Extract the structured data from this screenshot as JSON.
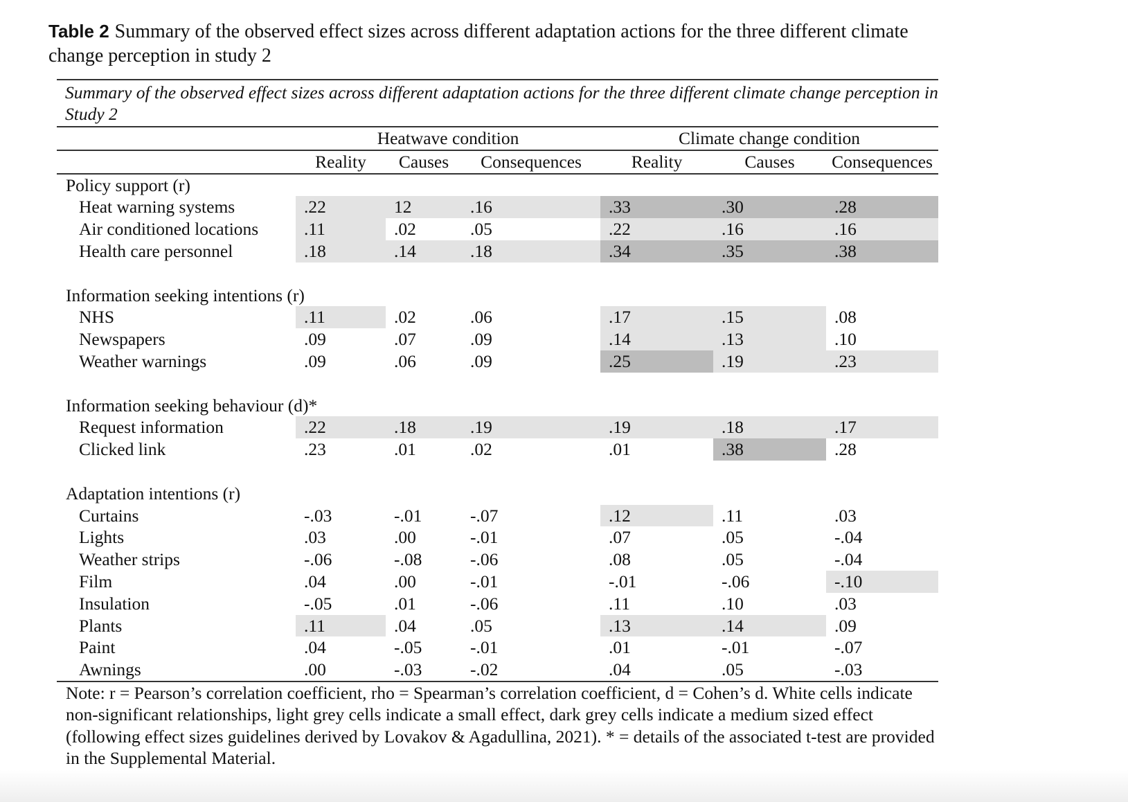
{
  "title": {
    "label": "Table 2",
    "text": "Summary of the observed effect sizes across different adaptation actions for the three different climate change perception in study 2"
  },
  "caption": "Summary of the observed effect sizes across different adaptation actions for the three different climate change perception in Study 2",
  "groups": [
    "Heatwave condition",
    "Climate change condition"
  ],
  "columns": [
    "Reality",
    "Causes",
    "Consequences",
    "Reality",
    "Causes",
    "Consequences"
  ],
  "sections": [
    {
      "label": "Policy support (r)",
      "rows": [
        {
          "label": "Heat warning systems",
          "values": [
            ".22",
            "12",
            ".16",
            ".33",
            ".30",
            ".28"
          ],
          "shade": [
            "light",
            "light",
            "light",
            "dark",
            "dark",
            "dark"
          ]
        },
        {
          "label": "Air conditioned locations",
          "values": [
            ".11",
            ".02",
            ".05",
            ".22",
            ".16",
            ".16"
          ],
          "shade": [
            "light",
            "",
            "",
            "light",
            "light",
            "light"
          ]
        },
        {
          "label": "Health care personnel",
          "values": [
            ".18",
            ".14",
            ".18",
            ".34",
            ".35",
            ".38"
          ],
          "shade": [
            "light",
            "light",
            "light",
            "dark",
            "dark",
            "dark"
          ]
        }
      ]
    },
    {
      "label": "Information seeking intentions (r)",
      "rows": [
        {
          "label": "NHS",
          "values": [
            ".11",
            ".02",
            ".06",
            ".17",
            ".15",
            ".08"
          ],
          "shade": [
            "light",
            "",
            "",
            "light",
            "light",
            ""
          ]
        },
        {
          "label": "Newspapers",
          "values": [
            ".09",
            ".07",
            ".09",
            ".14",
            ".13",
            ".10"
          ],
          "shade": [
            "",
            "",
            "",
            "light",
            "light",
            ""
          ]
        },
        {
          "label": "Weather warnings",
          "values": [
            ".09",
            ".06",
            ".09",
            ".25",
            ".19",
            ".23"
          ],
          "shade": [
            "",
            "",
            "",
            "dark",
            "light",
            "light"
          ]
        }
      ]
    },
    {
      "label": "Information seeking behaviour (d)*",
      "rows": [
        {
          "label": "Request information",
          "values": [
            ".22",
            ".18",
            ".19",
            ".19",
            ".18",
            ".17"
          ],
          "shade": [
            "light",
            "light",
            "light",
            "light",
            "light",
            "light"
          ]
        },
        {
          "label": "Clicked link",
          "values": [
            ".23",
            ".01",
            ".02",
            ".01",
            ".38",
            ".28"
          ],
          "shade": [
            "",
            "",
            "",
            "",
            "dark",
            ""
          ]
        }
      ]
    },
    {
      "label": "Adaptation intentions (r)",
      "rows": [
        {
          "label": "Curtains",
          "values": [
            "-.03",
            "-.01",
            "-.07",
            ".12",
            ".11",
            ".03"
          ],
          "shade": [
            "",
            "",
            "",
            "light",
            "",
            ""
          ]
        },
        {
          "label": "Lights",
          "values": [
            ".03",
            ".00",
            "-.01",
            ".07",
            ".05",
            "-.04"
          ],
          "shade": [
            "",
            "",
            "",
            "",
            "",
            ""
          ]
        },
        {
          "label": "Weather strips",
          "values": [
            "-.06",
            "-.08",
            "-.06",
            ".08",
            ".05",
            "-.04"
          ],
          "shade": [
            "",
            "",
            "",
            "",
            "",
            ""
          ]
        },
        {
          "label": "Film",
          "values": [
            ".04",
            ".00",
            "-.01",
            "-.01",
            "-.06",
            "-.10"
          ],
          "shade": [
            "",
            "",
            "",
            "",
            "",
            "light"
          ]
        },
        {
          "label": "Insulation",
          "values": [
            "-.05",
            ".01",
            "-.06",
            ".11",
            ".10",
            ".03"
          ],
          "shade": [
            "",
            "",
            "",
            "",
            "",
            ""
          ]
        },
        {
          "label": "Plants",
          "values": [
            ".11",
            ".04",
            ".05",
            ".13",
            ".14",
            ".09"
          ],
          "shade": [
            "light",
            "",
            "",
            "light",
            "light",
            ""
          ]
        },
        {
          "label": "Paint",
          "values": [
            ".04",
            "-.05",
            "-.01",
            ".01",
            "-.01",
            "-.07"
          ],
          "shade": [
            "",
            "",
            "",
            "",
            "",
            ""
          ]
        },
        {
          "label": "Awnings",
          "values": [
            ".00",
            "-.03",
            "-.02",
            ".04",
            ".05",
            "-.03"
          ],
          "shade": [
            "",
            "",
            "",
            "",
            "",
            ""
          ]
        }
      ]
    }
  ],
  "note": "Note: r = Pearson’s correlation coefficient, rho = Spearman’s correlation coefficient, d = Cohen’s d. White cells indicate non-significant relationships, light grey cells indicate a small effect, dark grey cells indicate a medium sized effect (following effect sizes guidelines derived by Lovakov & Agadullina, 2021). * = details of the associated t-test are provided in the Supplemental Material.",
  "colors": {
    "light": "#e3e3e3",
    "dark": "#bcbcbc"
  }
}
